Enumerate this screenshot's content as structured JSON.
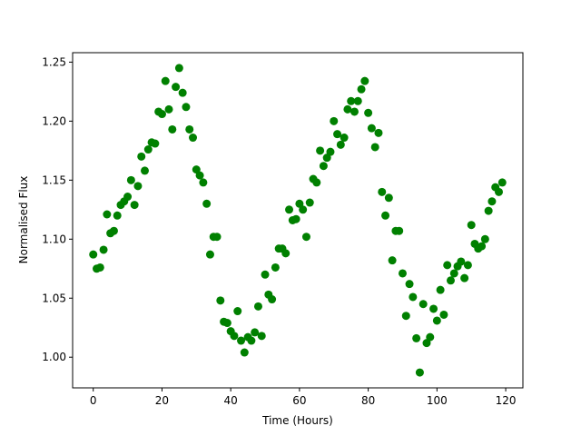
{
  "chart_data": {
    "type": "scatter",
    "title": "",
    "xlabel": "Time (Hours)",
    "ylabel": "Normalised Flux",
    "xlim": [
      -6,
      125
    ],
    "ylim": [
      0.974,
      1.258
    ],
    "xticks": [
      0,
      20,
      40,
      60,
      80,
      100,
      120
    ],
    "yticks": [
      1.0,
      1.05,
      1.1,
      1.15,
      1.2,
      1.25
    ],
    "xtick_labels": [
      "0",
      "20",
      "40",
      "60",
      "80",
      "100",
      "120"
    ],
    "ytick_labels": [
      "1.00",
      "1.05",
      "1.10",
      "1.15",
      "1.20",
      "1.25"
    ],
    "grid": false,
    "legend": "none",
    "marker_color": "#008000",
    "series": [
      {
        "x": [
          0,
          1,
          2,
          3,
          4,
          5,
          6,
          7,
          8,
          9,
          10,
          11,
          12,
          13,
          14,
          15,
          16,
          17,
          18,
          19,
          20,
          21,
          22,
          23,
          24,
          25,
          26,
          27,
          28,
          29,
          30,
          31,
          32,
          33,
          34,
          35,
          36,
          37,
          38,
          39,
          40,
          41,
          42,
          43,
          44,
          45,
          46,
          47,
          48,
          49,
          50,
          51,
          52,
          53,
          54,
          55,
          56,
          57,
          58,
          59,
          60,
          61,
          62,
          63,
          64,
          65,
          66,
          67,
          68,
          69,
          70,
          71,
          72,
          73,
          74,
          75,
          76,
          77,
          78,
          79,
          80,
          81,
          82,
          83,
          84,
          85,
          86,
          87,
          88,
          89,
          90,
          91,
          92,
          93,
          94,
          95,
          96,
          97,
          98,
          99,
          100,
          101,
          102,
          103,
          104,
          105,
          106,
          107,
          108,
          109,
          110,
          111,
          112,
          113,
          114,
          115,
          116,
          117,
          118,
          119
        ],
        "y": [
          1.087,
          1.075,
          1.076,
          1.091,
          1.121,
          1.105,
          1.107,
          1.12,
          1.129,
          1.132,
          1.136,
          1.15,
          1.129,
          1.145,
          1.17,
          1.158,
          1.176,
          1.182,
          1.181,
          1.208,
          1.206,
          1.234,
          1.21,
          1.193,
          1.229,
          1.245,
          1.224,
          1.212,
          1.193,
          1.186,
          1.159,
          1.154,
          1.148,
          1.13,
          1.087,
          1.102,
          1.102,
          1.048,
          1.03,
          1.029,
          1.022,
          1.018,
          1.039,
          1.014,
          1.004,
          1.017,
          1.014,
          1.021,
          1.043,
          1.018,
          1.07,
          1.053,
          1.049,
          1.076,
          1.092,
          1.092,
          1.088,
          1.125,
          1.116,
          1.117,
          1.13,
          1.125,
          1.102,
          1.131,
          1.151,
          1.148,
          1.175,
          1.162,
          1.169,
          1.174,
          1.2,
          1.189,
          1.18,
          1.186,
          1.21,
          1.217,
          1.208,
          1.217,
          1.227,
          1.234,
          1.207,
          1.194,
          1.178,
          1.19,
          1.14,
          1.12,
          1.135,
          1.082,
          1.107,
          1.107,
          1.071,
          1.035,
          1.062,
          1.051,
          1.016,
          0.987,
          1.045,
          1.012,
          1.017,
          1.041,
          1.031,
          1.057,
          1.036,
          1.078,
          1.065,
          1.071,
          1.077,
          1.081,
          1.067,
          1.078,
          1.112,
          1.096,
          1.092,
          1.094,
          1.1,
          1.124,
          1.132,
          1.144,
          1.14,
          1.148
        ]
      }
    ]
  }
}
